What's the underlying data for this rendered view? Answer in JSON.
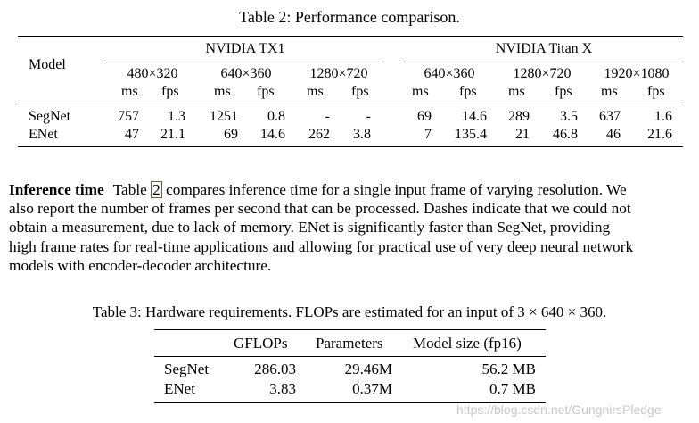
{
  "table2": {
    "caption": "Table 2: Performance comparison.",
    "model_header": "Model",
    "groups": [
      "NVIDIA TX1",
      "NVIDIA Titan X"
    ],
    "resolutions": [
      "480×320",
      "640×360",
      "1280×720",
      "640×360",
      "1280×720",
      "1920×1080"
    ],
    "unit_ms": "ms",
    "unit_fps": "fps",
    "rows": [
      {
        "model": "SegNet",
        "values": [
          "757",
          "1.3",
          "1251",
          "0.8",
          "-",
          "-",
          "69",
          "14.6",
          "289",
          "3.5",
          "637",
          "1.6"
        ]
      },
      {
        "model": "ENet",
        "values": [
          "47",
          "21.1",
          "69",
          "14.6",
          "262",
          "3.8",
          "7",
          "135.4",
          "21",
          "46.8",
          "46",
          "21.6"
        ]
      }
    ]
  },
  "paragraph": {
    "heading": "Inference time",
    "line1_before": "Table ",
    "ref": "2",
    "line1_after": " compares inference time for a single input frame of varying resolution. We",
    "lines": [
      "also report the number of frames per second that can be processed. Dashes indicate that we could not",
      "obtain a measurement, due to lack of memory. ENet is significantly faster than SegNet, providing",
      "high frame rates for real-time applications and allowing for practical use of very deep neural network",
      "models with encoder-decoder architecture."
    ]
  },
  "table3": {
    "caption": "Table 3: Hardware requirements. FLOPs are estimated for an input of 3 × 640 × 360.",
    "headers": [
      "",
      "GFLOPs",
      "Parameters",
      "Model size (fp16)"
    ],
    "rows": [
      {
        "model": "SegNet",
        "gflops": "286.03",
        "params": "29.46M",
        "size": "56.2 MB"
      },
      {
        "model": "ENet",
        "gflops": "3.83",
        "params": "0.37M",
        "size": "0.7 MB"
      }
    ]
  },
  "watermark": "https://blog.csdn.net/GungnirsPledge"
}
